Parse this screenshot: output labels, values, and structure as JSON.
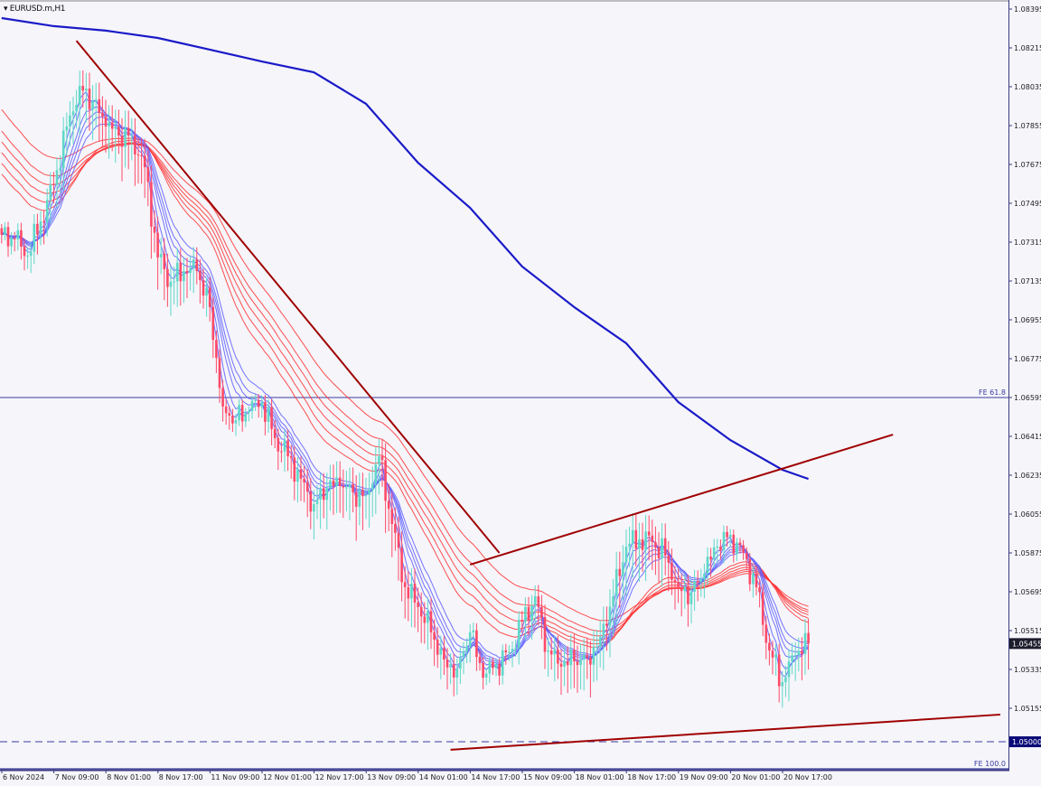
{
  "window": {
    "title": "EURUSD.m,H1"
  },
  "colors": {
    "background": "#f5f5fa",
    "up_candle": "#5fd8c8",
    "down_candle": "#ff4a68",
    "ma_long": "#1a1ac8",
    "gmma_short": "#5a5aff",
    "gmma_long": "#ff3030",
    "trendline": "#a00000",
    "level_line": "#3a3aa0",
    "axis": "#3a3a80"
  },
  "chart_data": {
    "type": "candlestick",
    "symbol": "EURUSD.m",
    "timeframe": "H1",
    "ylim": [
      1.04875,
      1.08395
    ],
    "y_ticks": [
      "1.08395",
      "1.08215",
      "1.08035",
      "1.07855",
      "1.07675",
      "1.07495",
      "1.07315",
      "1.07135",
      "1.06955",
      "1.06775",
      "1.06595",
      "1.06415",
      "1.06235",
      "1.06055",
      "1.05875",
      "1.05695",
      "1.05515",
      "1.05335",
      "1.05155"
    ],
    "x_ticks": [
      "6 Nov 2024",
      "7 Nov 09:00",
      "8 Nov 01:00",
      "8 Nov 17:00",
      "11 Nov 09:00",
      "12 Nov 01:00",
      "12 Nov 17:00",
      "13 Nov 09:00",
      "14 Nov 01:00",
      "14 Nov 17:00",
      "15 Nov 09:00",
      "18 Nov 01:00",
      "18 Nov 17:00",
      "19 Nov 09:00",
      "20 Nov 01:00",
      "20 Nov 17:00"
    ],
    "close_every_4_bars": [
      1.07349,
      1.07328,
      1.07252,
      1.07411,
      1.07579,
      1.07851,
      1.08039,
      1.07968,
      1.07851,
      1.07809,
      1.07809,
      1.07662,
      1.07244,
      1.07131,
      1.07181,
      1.07181,
      1.07014,
      1.06553,
      1.0649,
      1.06532,
      1.06574,
      1.06407,
      1.06323,
      1.06218,
      1.06101,
      1.06176,
      1.06185,
      1.06156,
      1.06143,
      1.06323,
      1.06009,
      1.05716,
      1.05624,
      1.05507,
      1.05381,
      1.05339,
      1.05507,
      1.05297,
      1.0536,
      1.05415,
      1.05557,
      1.05674,
      1.05423,
      1.05348,
      1.05373,
      1.0539,
      1.05486,
      1.05674,
      1.05904,
      1.05938,
      1.05925,
      1.05863,
      1.05716,
      1.05695,
      1.05779,
      1.05904,
      1.05959,
      1.05875,
      1.05716,
      1.05423,
      1.05276,
      1.05402,
      1.05455
    ],
    "ma_long_every_16_bars": [
      1.08353,
      1.08316,
      1.08295,
      1.08261,
      1.08207,
      1.08152,
      1.08102,
      1.07956,
      1.07683,
      1.07474,
      1.07202,
      1.07014,
      1.06846,
      1.06574,
      1.06398,
      1.0626,
      1.06218
    ],
    "gmma_short_periods": [
      3,
      5,
      8,
      10,
      12,
      15
    ],
    "gmma_long_periods": [
      30,
      35,
      40,
      45,
      50,
      60
    ],
    "trendlines": [
      {
        "from": {
          "bar": 23,
          "price": 1.08248
        },
        "to": {
          "bar": 153,
          "price": 1.05875
        }
      },
      {
        "from": {
          "bar": 144,
          "price": 1.05821
        },
        "to": {
          "bar": 274,
          "price": 1.06423
        }
      },
      {
        "from": {
          "bar": 138,
          "price": 1.04963
        },
        "to": {
          "bar": 307,
          "price": 1.05126
        }
      }
    ],
    "levels": [
      {
        "label": "FE 61.8",
        "price": 1.06595,
        "style": "solid"
      },
      {
        "label": "FE 100.0",
        "price": 1.04875,
        "style": "solid"
      },
      {
        "label": "1.05000",
        "price": 1.05,
        "style": "dashed"
      }
    ],
    "last_price": "1.05455",
    "last_price_value": 1.05455
  }
}
